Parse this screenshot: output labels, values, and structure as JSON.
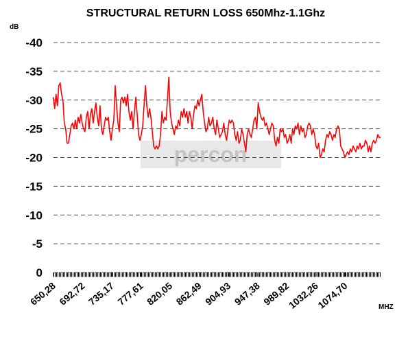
{
  "chart_data": {
    "type": "line",
    "title": "STRUCTURAL RETURN LOSS 650Mhz-1.1Ghz",
    "y_label": "dB",
    "x_label": "MHZ",
    "watermark": "percon",
    "ylim": [
      0,
      -40
    ],
    "yticks": [
      0,
      -5,
      -10,
      -15,
      -20,
      -25,
      -30,
      -35,
      -40
    ],
    "xlim": [
      650.28,
      1126
    ],
    "xticks": [
      {
        "value": 650.28,
        "label": "650,28"
      },
      {
        "value": 692.72,
        "label": "692,72"
      },
      {
        "value": 735.17,
        "label": "735,17"
      },
      {
        "value": 777.61,
        "label": "777,61"
      },
      {
        "value": 820.05,
        "label": "820,05"
      },
      {
        "value": 862.49,
        "label": "862,49"
      },
      {
        "value": 904.93,
        "label": "904,93"
      },
      {
        "value": 947.38,
        "label": "947,38"
      },
      {
        "value": 989.82,
        "label": "989,82"
      },
      {
        "value": 1032.26,
        "label": "1032,26"
      },
      {
        "value": 1074.7,
        "label": "1074,70"
      }
    ],
    "grid": true,
    "x": [
      650,
      652,
      654,
      656,
      658,
      660,
      662,
      664,
      666,
      668,
      670,
      672,
      674,
      676,
      678,
      680,
      682,
      684,
      686,
      688,
      690,
      692,
      694,
      696,
      698,
      700,
      702,
      704,
      706,
      708,
      710,
      712,
      714,
      716,
      718,
      720,
      722,
      724,
      726,
      728,
      730,
      732,
      734,
      736,
      738,
      740,
      742,
      744,
      746,
      748,
      750,
      752,
      754,
      756,
      758,
      760,
      762,
      764,
      766,
      768,
      770,
      772,
      774,
      776,
      778,
      780,
      782,
      784,
      786,
      788,
      790,
      792,
      794,
      796,
      798,
      800,
      802,
      804,
      806,
      808,
      810,
      812,
      814,
      816,
      818,
      820,
      822,
      824,
      826,
      828,
      830,
      832,
      834,
      836,
      838,
      840,
      842,
      844,
      846,
      848,
      850,
      852,
      854,
      856,
      858,
      860,
      862,
      864,
      866,
      868,
      870,
      872,
      874,
      876,
      878,
      880,
      882,
      884,
      886,
      888,
      890,
      892,
      894,
      896,
      898,
      900,
      902,
      904,
      906,
      908,
      910,
      912,
      914,
      916,
      918,
      920,
      922,
      924,
      926,
      928,
      930,
      932,
      934,
      936,
      938,
      940,
      942,
      944,
      946,
      948,
      950,
      952,
      954,
      956,
      958,
      960,
      962,
      964,
      966,
      968,
      970,
      972,
      974,
      976,
      978,
      980,
      982,
      984,
      986,
      988,
      990,
      992,
      994,
      996,
      998,
      1000,
      1002,
      1004,
      1006,
      1008,
      1010,
      1012,
      1014,
      1016,
      1018,
      1020,
      1022,
      1024,
      1026,
      1028,
      1030,
      1032,
      1034,
      1036,
      1038,
      1040,
      1042,
      1044,
      1046,
      1048,
      1050,
      1052,
      1054,
      1056,
      1058,
      1060,
      1062,
      1064,
      1066,
      1068,
      1070,
      1072,
      1074,
      1076,
      1078,
      1080,
      1082,
      1084,
      1086,
      1088,
      1090,
      1092,
      1094,
      1096,
      1098,
      1100,
      1102,
      1104,
      1106,
      1108,
      1110,
      1112,
      1114,
      1116,
      1118,
      1120,
      1122,
      1124,
      1126
    ],
    "series": [
      {
        "color": "#ff0000",
        "values": [
          -30.5,
          -28.5,
          -31,
          -29,
          -32.5,
          -33,
          -31,
          -30,
          -26,
          -25,
          -22.5,
          -22.5,
          -24,
          -25.5,
          -26,
          -25,
          -26.5,
          -25,
          -27,
          -26,
          -27.5,
          -26,
          -25,
          -24.5,
          -27,
          -28,
          -25,
          -27.5,
          -28.5,
          -26,
          -28,
          -29.5,
          -27,
          -25.5,
          -29,
          -25,
          -24,
          -25.5,
          -27,
          -26.5,
          -27,
          -24.5,
          -23,
          -25,
          -26.5,
          -32.5,
          -29,
          -26,
          -24.5,
          -30,
          -30.5,
          -29.5,
          -30.5,
          -29,
          -31,
          -28,
          -26.5,
          -28,
          -25,
          -28,
          -30.5,
          -27.5,
          -24,
          -23,
          -24,
          -25.5,
          -29,
          -32.5,
          -29,
          -27,
          -28.5,
          -27,
          -24.5,
          -22,
          -21.5,
          -22,
          -21.5,
          -22,
          -24,
          -28,
          -26,
          -27,
          -26.5,
          -30,
          -34,
          -28,
          -26,
          -25,
          -24,
          -25.5,
          -25,
          -26.5,
          -25.5,
          -28,
          -27,
          -28.5,
          -27,
          -28,
          -26,
          -28,
          -27,
          -25,
          -27.5,
          -29,
          -28.5,
          -30,
          -29,
          -30,
          -31,
          -28,
          -26,
          -24.5,
          -25,
          -27,
          -25.5,
          -26,
          -27,
          -25,
          -24,
          -26.5,
          -25,
          -23.5,
          -24,
          -24.5,
          -26,
          -24,
          -23,
          -25,
          -26.5,
          -26,
          -26.5,
          -26,
          -24,
          -23,
          -24.5,
          -22.5,
          -23,
          -25,
          -24,
          -22.5,
          -21,
          -24,
          -25,
          -24,
          -23.5,
          -25,
          -26.5,
          -27,
          -25,
          -29.5,
          -28,
          -27,
          -26.5,
          -27,
          -25.5,
          -26,
          -25,
          -24,
          -25,
          -26,
          -25.5,
          -23,
          -22,
          -23.5,
          -22.5,
          -25,
          -24.5,
          -25,
          -23.5,
          -24,
          -22.5,
          -23,
          -24,
          -22.5,
          -25,
          -24,
          -25.5,
          -25,
          -26,
          -24,
          -25.5,
          -24.5,
          -25,
          -23.5,
          -24,
          -25.5,
          -26,
          -25.5,
          -24,
          -25,
          -24,
          -22,
          -21.5,
          -22.5,
          -20,
          -20.5,
          -21.5,
          -21,
          -23,
          -24,
          -23.5,
          -24.5,
          -24,
          -23,
          -24,
          -23.5,
          -25,
          -25.5,
          -25,
          -22,
          -21.5,
          -21,
          -20,
          -20.5,
          -21,
          -20.5,
          -21.5,
          -21,
          -22,
          -21.5,
          -21,
          -22,
          -21.5,
          -22.5,
          -21.5,
          -22,
          -22,
          -23,
          -22.5,
          -21,
          -22,
          -21,
          -22.5,
          -23,
          -22.5,
          -23,
          -24,
          -23.5,
          -23.5
        ]
      }
    ]
  }
}
